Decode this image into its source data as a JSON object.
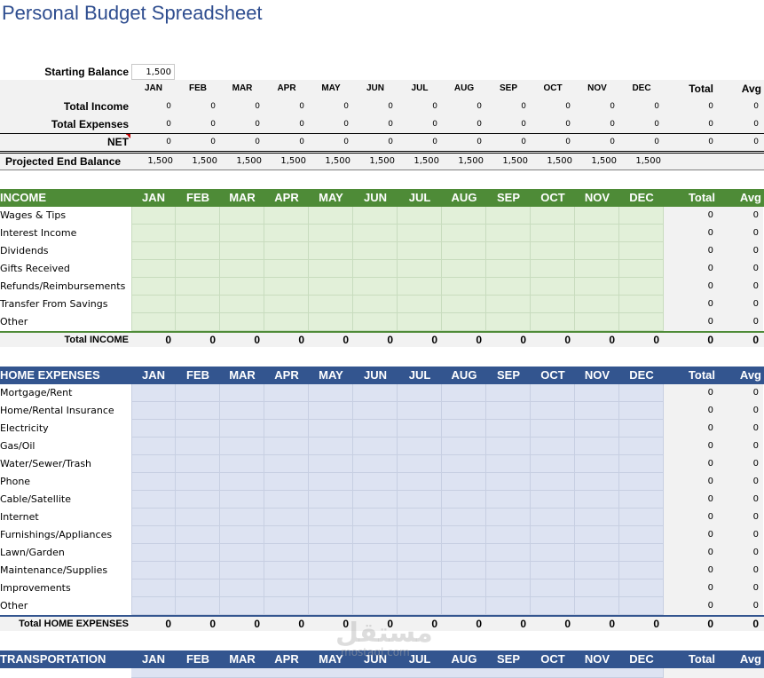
{
  "title": "Personal Budget Spreadsheet",
  "months": [
    "JAN",
    "FEB",
    "MAR",
    "APR",
    "MAY",
    "JUN",
    "JUL",
    "AUG",
    "SEP",
    "OCT",
    "NOV",
    "DEC"
  ],
  "total_label": "Total",
  "avg_label": "Avg",
  "summary": {
    "starting_balance_label": "Starting Balance",
    "starting_balance_value": "1,500",
    "rows": [
      {
        "label": "Total Income",
        "values": [
          "0",
          "0",
          "0",
          "0",
          "0",
          "0",
          "0",
          "0",
          "0",
          "0",
          "0",
          "0"
        ],
        "total": "0",
        "avg": "0"
      },
      {
        "label": "Total Expenses",
        "values": [
          "0",
          "0",
          "0",
          "0",
          "0",
          "0",
          "0",
          "0",
          "0",
          "0",
          "0",
          "0"
        ],
        "total": "0",
        "avg": "0"
      },
      {
        "label": "NET",
        "values": [
          "0",
          "0",
          "0",
          "0",
          "0",
          "0",
          "0",
          "0",
          "0",
          "0",
          "0",
          "0"
        ],
        "total": "0",
        "avg": "0"
      }
    ],
    "projected_label": "Projected End Balance",
    "projected_values": [
      "1,500",
      "1,500",
      "1,500",
      "1,500",
      "1,500",
      "1,500",
      "1,500",
      "1,500",
      "1,500",
      "1,500",
      "1,500",
      "1,500"
    ]
  },
  "sections": [
    {
      "header": "INCOME",
      "theme": "green",
      "items": [
        "Wages & Tips",
        "Interest Income",
        "Dividends",
        "Gifts Received",
        "Refunds/Reimbursements",
        "Transfer From Savings",
        "Other"
      ],
      "item_total": "0",
      "item_avg": "0",
      "total_label": "Total INCOME",
      "total_values": [
        "0",
        "0",
        "0",
        "0",
        "0",
        "0",
        "0",
        "0",
        "0",
        "0",
        "0",
        "0"
      ],
      "total_total": "0",
      "total_avg": "0"
    },
    {
      "header": "HOME EXPENSES",
      "theme": "blue",
      "items": [
        "Mortgage/Rent",
        "Home/Rental Insurance",
        "Electricity",
        "Gas/Oil",
        "Water/Sewer/Trash",
        "Phone",
        "Cable/Satellite",
        "Internet",
        "Furnishings/Appliances",
        "Lawn/Garden",
        "Maintenance/Supplies",
        "Improvements",
        "Other"
      ],
      "item_total": "0",
      "item_avg": "0",
      "total_label": "Total HOME EXPENSES",
      "total_values": [
        "0",
        "0",
        "0",
        "0",
        "0",
        "0",
        "0",
        "0",
        "0",
        "0",
        "0",
        "0"
      ],
      "total_total": "0",
      "total_avg": "0"
    },
    {
      "header": "TRANSPORTATION",
      "theme": "blue",
      "items": [],
      "total_label": "",
      "total_values": []
    }
  ],
  "colors": {
    "title": "#2e4d8f",
    "income_header": "#4e8b37",
    "income_input": "#e2f0d9",
    "expense_header": "#33558f",
    "expense_input": "#dde3f2"
  },
  "watermark": {
    "brand": "مستقل",
    "site": "mostaql.com"
  }
}
